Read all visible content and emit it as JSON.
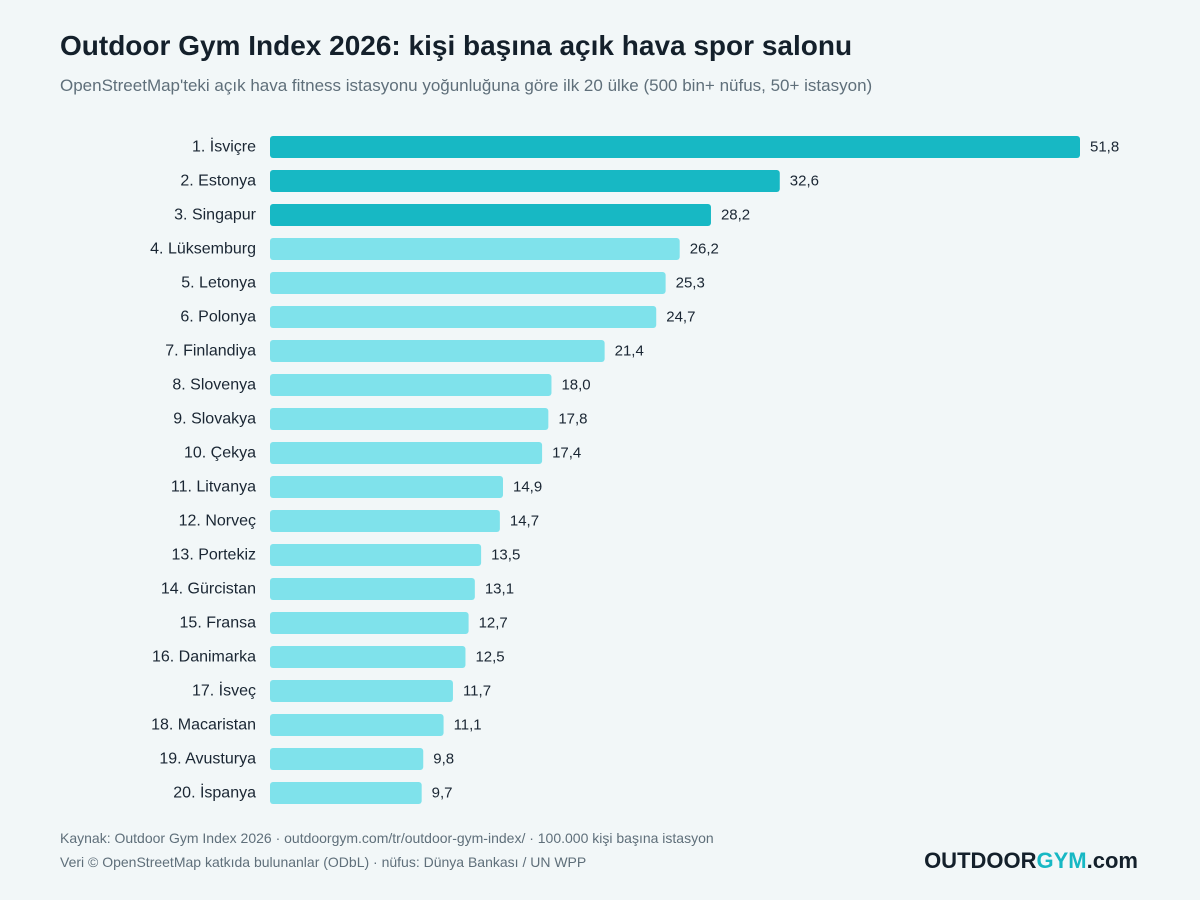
{
  "header": {
    "title": "Outdoor Gym Index 2026: kişi başına açık hava spor salonu",
    "subtitle": "OpenStreetMap'teki açık hava fitness istasyonu yoğunluğuna göre ilk 20 ülke (500 bin+ nüfus, 50+ istasyon)"
  },
  "footer": {
    "source": "Kaynak: Outdoor Gym Index 2026 · outdoorgym.com/tr/outdoor-gym-index/ · 100.000 kişi başına istasyon",
    "credits": "Veri © OpenStreetMap katkıda bulunanlar (ODbL) · nüfus: Dünya Bankası / UN WPP"
  },
  "brand": {
    "part1": "OUTDOOR",
    "part2": "GYM",
    "part3": ".com"
  },
  "colors": {
    "top3": "#17b8c4",
    "rest": "#7fe2eb",
    "label": "#1a2633"
  },
  "chart_data": {
    "type": "bar",
    "orientation": "horizontal",
    "title": "Outdoor Gym Index 2026: kişi başına açık hava spor salonu",
    "subtitle": "OpenStreetMap'teki açık hava fitness istasyonu yoğunluğuna göre ilk 20 ülke (500 bin+ nüfus, 50+ istasyon)",
    "xlabel": "",
    "ylabel": "",
    "grid": false,
    "legend": "none",
    "highlight_top": 3,
    "categories": [
      "1. İsviçre",
      "2. Estonya",
      "3. Singapur",
      "4. Lüksemburg",
      "5. Letonya",
      "6. Polonya",
      "7. Finlandiya",
      "8. Slovenya",
      "9. Slovakya",
      "10. Çekya",
      "11. Litvanya",
      "12. Norveç",
      "13. Portekiz",
      "14. Gürcistan",
      "15. Fransa",
      "16. Danimarka",
      "17. İsveç",
      "18. Macaristan",
      "19. Avusturya",
      "20. İspanya"
    ],
    "values": [
      51.8,
      32.6,
      28.2,
      26.2,
      25.3,
      24.7,
      21.4,
      18.0,
      17.8,
      17.4,
      14.9,
      14.7,
      13.5,
      13.1,
      12.7,
      12.5,
      11.7,
      11.1,
      9.8,
      9.7
    ],
    "value_labels": [
      "51,8",
      "32,6",
      "28,2",
      "26,2",
      "25,3",
      "24,7",
      "21,4",
      "18,0",
      "17,8",
      "17,4",
      "14,9",
      "14,7",
      "13,5",
      "13,1",
      "12,7",
      "12,5",
      "11,7",
      "11,1",
      "9,8",
      "9,7"
    ]
  }
}
